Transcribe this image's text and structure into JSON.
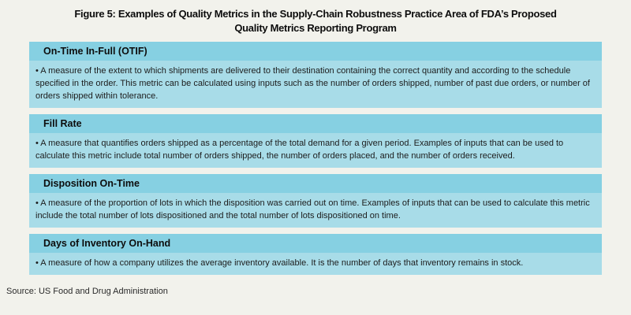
{
  "colors": {
    "header_blue": "#86d0e2",
    "body_blue": "#a8dce8",
    "background": "#f2f2ec",
    "text": "#111111"
  },
  "title_lines": [
    "Figure 5: Examples of Quality Metrics in the Supply-Chain Robustness Practice Area of FDA’s Proposed",
    "Quality Metrics Reporting Program"
  ],
  "sections": [
    {
      "title": "On-Time In-Full (OTIF)",
      "body": "• A measure of the extent to which shipments are delivered to their destination containing the correct quantity and according to the schedule specified in the order. This metric can be calculated using inputs such as the number of orders shipped, number of past due orders, or number of orders shipped within tolerance."
    },
    {
      "title": "Fill Rate",
      "body": "• A measure that quantifies orders shipped as a percentage of the total demand for a given period. Examples of inputs that can be used to calculate this metric include total number of orders shipped, the number of orders placed, and the number of orders received."
    },
    {
      "title": "Disposition On-Time",
      "body": "• A measure of the proportion of lots in which the disposition was carried out on time. Examples of inputs that can be used to calculate this metric include the total number of lots dispositioned and the total number of lots dispositioned on time."
    },
    {
      "title": "Days of Inventory On-Hand",
      "body": "• A measure of how a company utilizes the average inventory available. It is the number of days that inventory remains in stock."
    }
  ],
  "source": "Source: US Food and Drug Administration"
}
